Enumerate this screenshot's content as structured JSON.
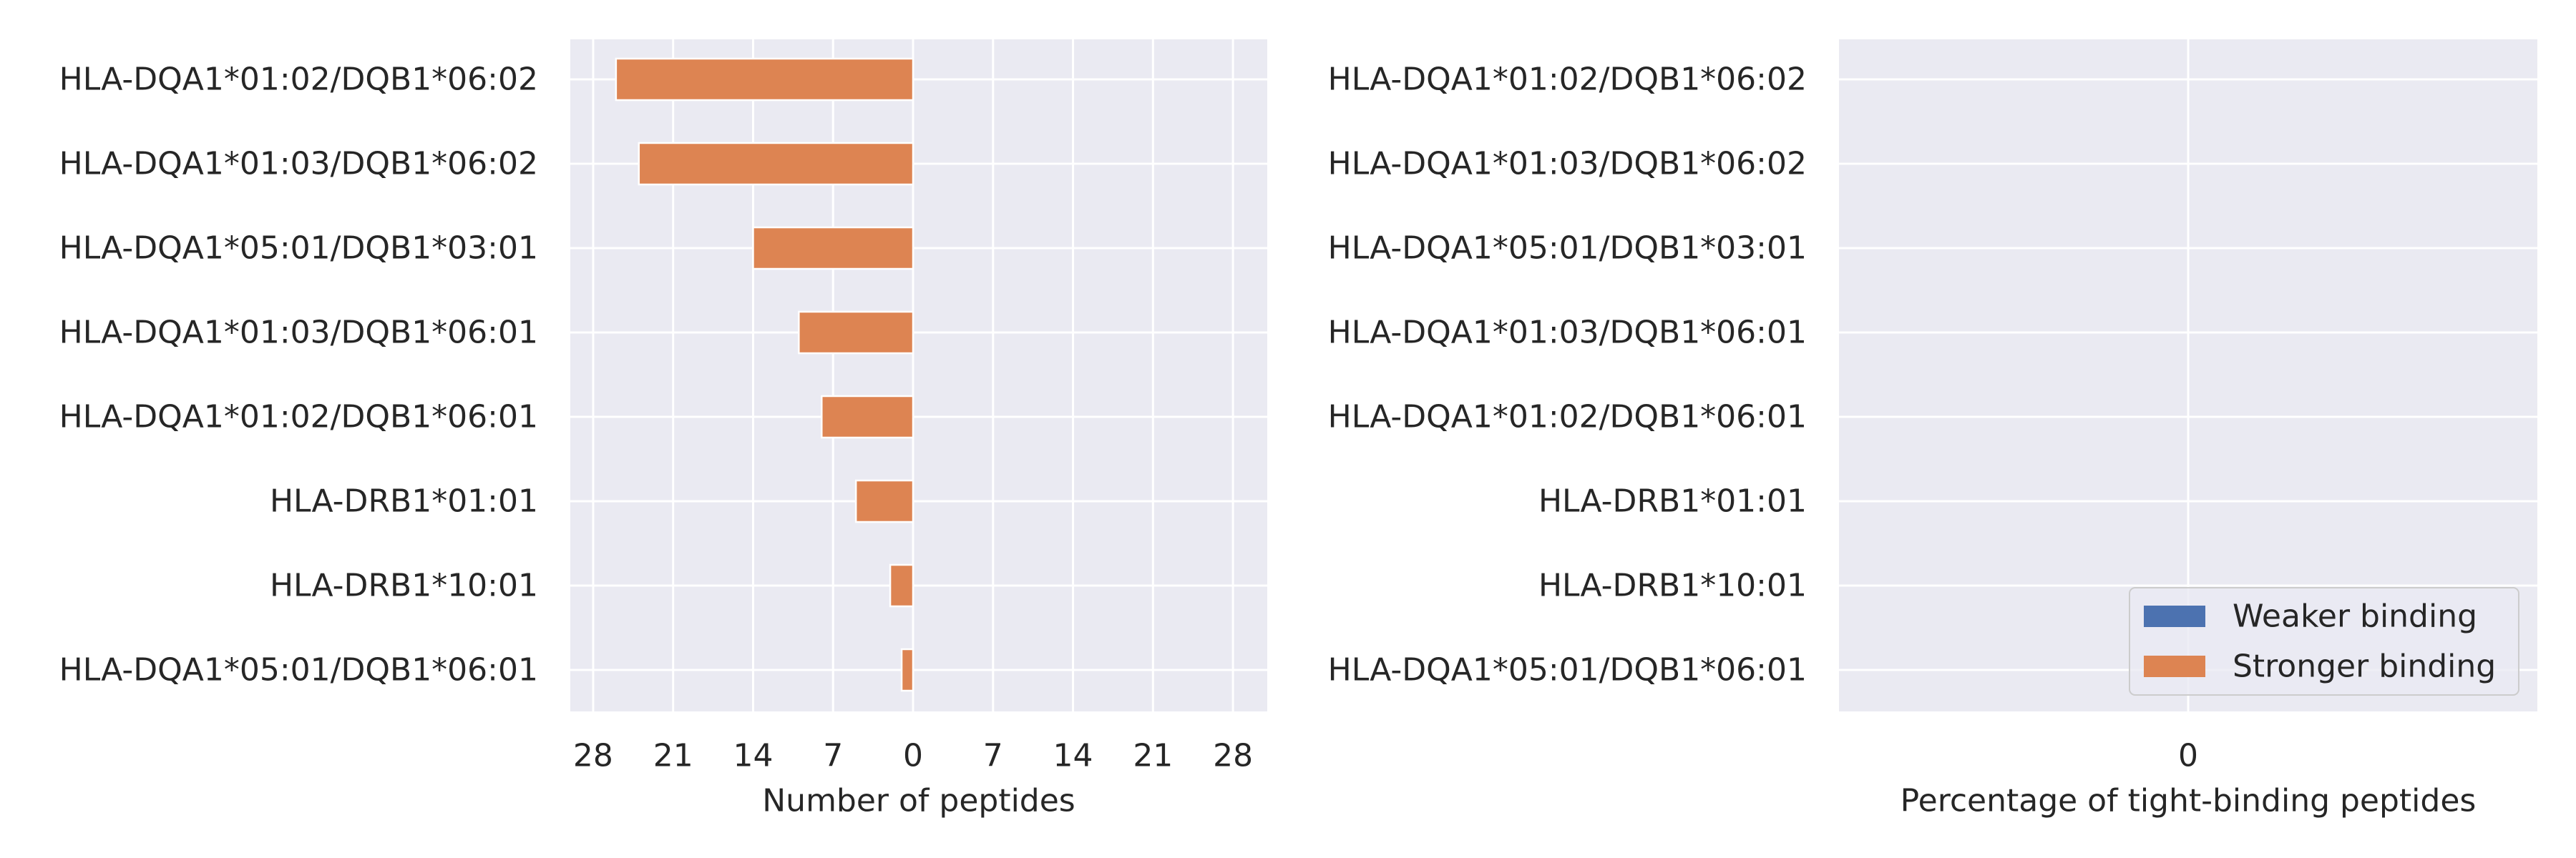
{
  "chart_data": [
    {
      "type": "bar",
      "orientation": "horizontal",
      "categories": [
        "HLA-DQA1*01:02/DQB1*06:02",
        "HLA-DQA1*01:03/DQB1*06:02",
        "HLA-DQA1*05:01/DQB1*03:01",
        "HLA-DQA1*01:03/DQB1*06:01",
        "HLA-DQA1*01:02/DQB1*06:01",
        "HLA-DRB1*01:01",
        "HLA-DRB1*10:01",
        "HLA-DQA1*05:01/DQB1*06:01"
      ],
      "series": [
        {
          "name": "Weaker binding",
          "values": [
            0,
            0,
            0,
            0,
            0,
            0,
            0,
            0
          ],
          "color": "#4c72b0",
          "direction": "right"
        },
        {
          "name": "Stronger binding",
          "values": [
            26,
            24,
            14,
            10,
            8,
            5,
            2,
            1
          ],
          "color": "#dd8452",
          "direction": "left"
        }
      ],
      "xlabel": "Number of peptides",
      "xlim": [
        -30,
        31
      ],
      "xticks": [
        -28,
        -21,
        -14,
        -7,
        0,
        7,
        14,
        21,
        28
      ],
      "xtick_labels": [
        "28",
        "21",
        "14",
        "7",
        "0",
        "7",
        "14",
        "21",
        "28"
      ],
      "grid": true,
      "background": "#eaeaf2"
    },
    {
      "type": "bar",
      "orientation": "horizontal",
      "categories": [
        "HLA-DQA1*01:02/DQB1*06:02",
        "HLA-DQA1*01:03/DQB1*06:02",
        "HLA-DQA1*05:01/DQB1*03:01",
        "HLA-DQA1*01:03/DQB1*06:01",
        "HLA-DQA1*01:02/DQB1*06:01",
        "HLA-DRB1*01:01",
        "HLA-DRB1*10:01",
        "HLA-DQA1*05:01/DQB1*06:01"
      ],
      "series": [
        {
          "name": "Weaker binding",
          "values": [
            0,
            0,
            0,
            0,
            0,
            0,
            0,
            0
          ],
          "color": "#4c72b0"
        },
        {
          "name": "Stronger binding",
          "values": [
            0,
            0,
            0,
            0,
            0,
            0,
            0,
            0
          ],
          "color": "#dd8452"
        }
      ],
      "xlabel": "Percentage of tight-binding peptides",
      "xlim": [
        -1,
        1
      ],
      "xticks": [
        0
      ],
      "xtick_labels": [
        "0"
      ],
      "grid": true,
      "background": "#eaeaf2",
      "legend": {
        "placement": "lower-right",
        "entries": [
          {
            "label": "Weaker binding",
            "color": "#4c72b0"
          },
          {
            "label": "Stronger binding",
            "color": "#dd8452"
          }
        ]
      }
    }
  ]
}
